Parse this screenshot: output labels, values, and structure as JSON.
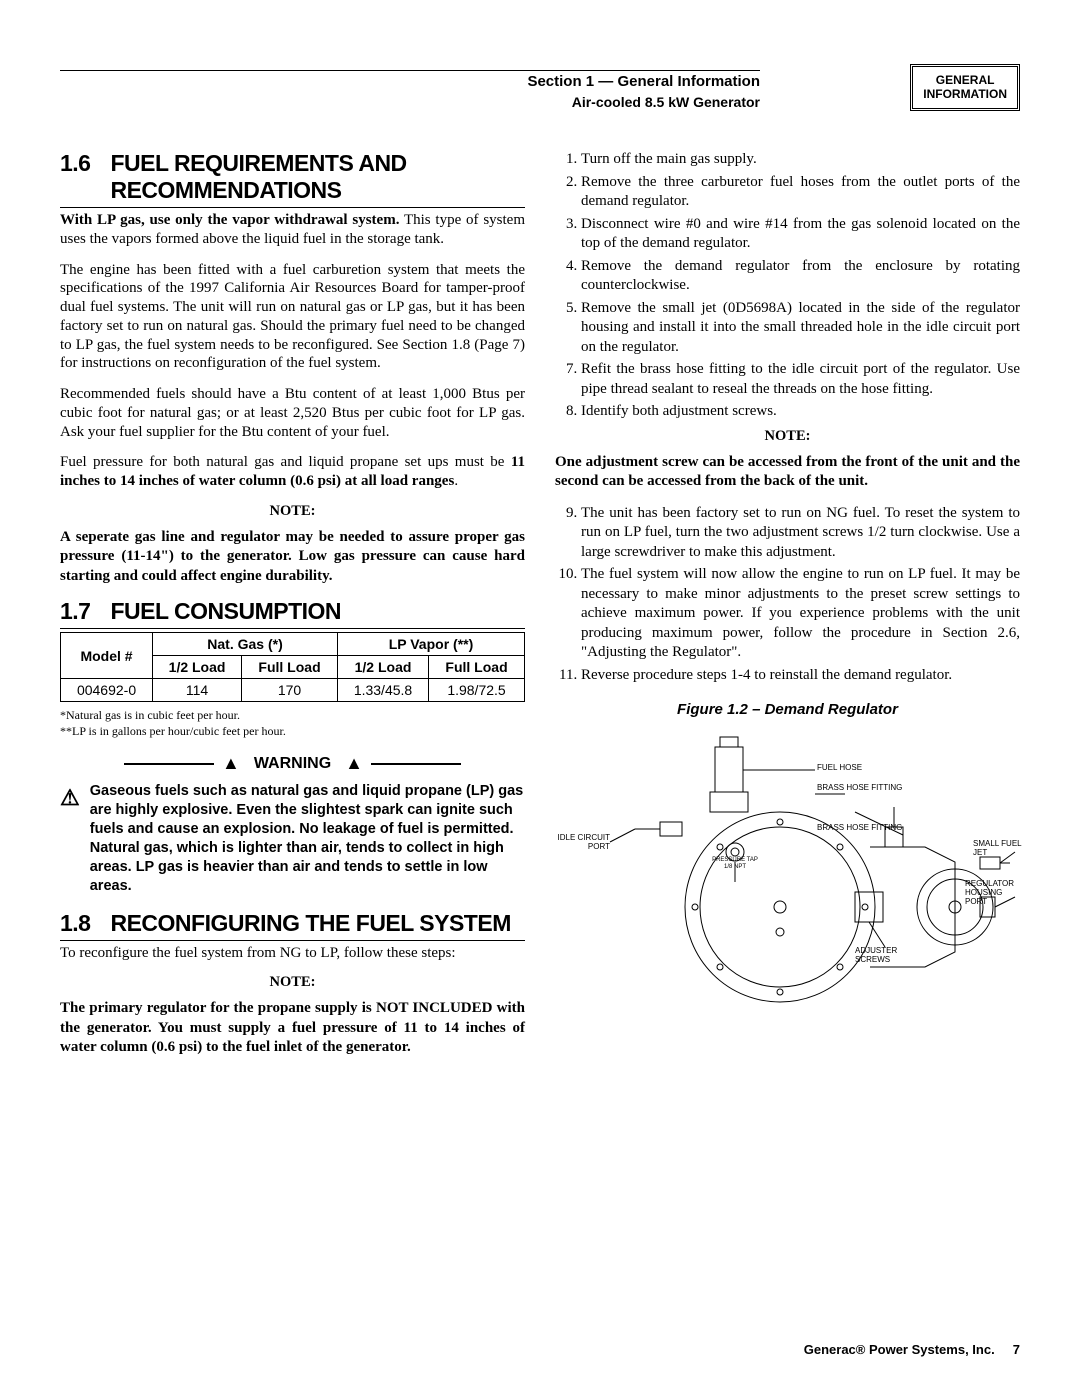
{
  "header": {
    "section": "Section 1 — General Information",
    "product": "Air-cooled 8.5 kW Generator",
    "box_line1": "GENERAL",
    "box_line2": "INFORMATION"
  },
  "s16": {
    "num": "1.6",
    "title": "FUEL REQUIREMENTS AND RECOMMENDATIONS",
    "p1a": "With LP gas, use only the vapor withdrawal system.",
    "p1b": " This type of system uses the vapors formed above the liquid fuel in the storage tank.",
    "p2": "The engine has been fitted with a fuel carburetion system that meets the specifications of the 1997 California Air Resources Board for tamper-proof dual fuel systems. The unit will run on natural gas or LP gas, but it has been factory set to run on natural gas. Should the primary fuel need to be changed to LP gas, the fuel system needs to be reconfigured. See Section 1.8 (Page 7) for instructions on reconfiguration of the fuel system.",
    "p3": "Recommended fuels should have a Btu content of at least 1,000 Btus per cubic foot for natural gas; or at least 2,520 Btus per cubic foot for LP gas. Ask your fuel supplier for the Btu content of your fuel.",
    "p4a": "Fuel pressure for both natural gas and liquid propane set ups must be ",
    "p4b": "11 inches to 14 inches of water column (0.6 psi) at all load ranges",
    "p4c": ".",
    "note_label": "NOTE:",
    "note1": "A seperate gas line and regulator may be needed to assure proper gas pressure (11-14\") to the generator.  Low gas pressure can cause hard starting and could affect engine durability."
  },
  "s17": {
    "num": "1.7",
    "title": "FUEL CONSUMPTION",
    "table": {
      "h_model": "Model #",
      "h_ng": "Nat. Gas (*)",
      "h_lp": "LP Vapor (**)",
      "h_half": "1/2 Load",
      "h_full": "Full Load",
      "model": "004692-0",
      "ng_half": "114",
      "ng_full": "170",
      "lp_half": "1.33/45.8",
      "lp_full": "1.98/72.5"
    },
    "notes1": "*Natural gas is in cubic feet per hour.",
    "notes2": "**LP is in gallons per hour/cubic feet per hour.",
    "warning_label": "WARNING",
    "warning_body": "Gaseous fuels such as natural gas and liquid propane (LP) gas are highly explosive. Even the slightest spark can ignite such fuels and cause an explosion. No leakage of fuel is permitted. Natural gas, which is lighter than air, tends to collect in high areas. LP gas is heavier than air and tends to settle in low areas."
  },
  "s18": {
    "num": "1.8",
    "title": "RECONFIGURING THE FUEL SYSTEM",
    "intro": "To reconfigure the fuel system from NG to LP, follow these steps:",
    "note_label": "NOTE:",
    "note1a": "The primary regulator for the propane supply is NOT INCLUDED with the generator. You must supply a fuel pressure of 11 to 14 inches of water column (0.6 psi) to the fuel inlet of the generator.",
    "steps": [
      "Turn off the main gas supply.",
      "Remove the three carburetor fuel hoses from the outlet ports of the demand regulator.",
      "Disconnect wire #0 and wire #14 from the gas solenoid located on the top of the demand regulator.",
      "Remove the demand regulator from the enclosure by rotating counterclockwise.",
      "Remove the small jet (0D5698A) located in the side of the regulator housing and install it into the small threaded hole in the idle circuit port on the regulator.",
      "Refit the brass hose fitting to the idle circuit port of the regulator.  Use pipe thread sealant to reseal the threads on the hose fitting.",
      "Identify both adjustment screws."
    ],
    "steps_start_7": 7,
    "note2_label": "NOTE:",
    "note2": "One adjustment screw can be accessed from the front of the unit and the second can be accessed from the back of the unit.",
    "steps_b": [
      "The unit has been factory set to run on NG fuel.  To reset the system to run on LP fuel, turn the two adjustment screws 1/2 turn clockwise.  Use a large screwdriver to make this adjustment.",
      "The fuel system will now allow the engine to run on LP fuel.  It may be necessary to make minor adjustments to the preset screw settings to achieve maximum power.  If you experience problems with the unit producing maximum power, follow the procedure in Section 2.6, \"Adjusting the Regulator\".",
      "Reverse procedure steps 1-4 to reinstall the demand regulator."
    ],
    "figure_caption": "Figure 1.2 – Demand Regulator",
    "diagram_labels": {
      "fuel_hose": "FUEL HOSE",
      "brass_hose_fitting": "BRASS HOSE FITTING",
      "brass_hose_fitting2": "BRASS HOSE FITTING",
      "idle_circuit_port": "IDLE CIRCUIT PORT",
      "pressure_tap": "PRESSURE TAP 1/8 NPT",
      "small_fuel_jet": "SMALL FUEL JET",
      "regulator_housing_port": "REGULATOR HOUSING PORT",
      "adjuster_screws": "ADJUSTER SCREWS"
    }
  },
  "footer": {
    "company": "Generac® Power Systems, Inc.",
    "page": "7"
  }
}
